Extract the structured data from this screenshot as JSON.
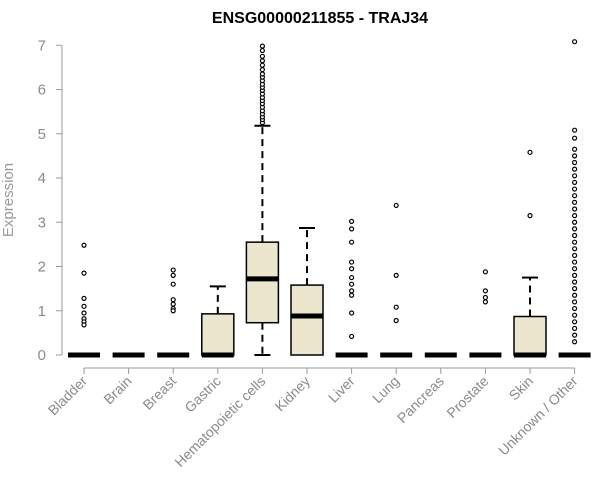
{
  "chart_data": {
    "type": "box",
    "title": "ENSG00000211855 - TRAJ34",
    "xlabel": "",
    "ylabel": "Expression",
    "ylim": [
      0,
      7
    ],
    "yticks": [
      "0",
      "1",
      "2",
      "3",
      "4",
      "5",
      "6",
      "7"
    ],
    "grid": false,
    "box_fill": "#ede6cf",
    "categories": [
      "Bladder",
      "Brain",
      "Breast",
      "Gastric",
      "Hematopoietic cells",
      "Kidney",
      "Liver",
      "Lung",
      "Pancreas",
      "Prostate",
      "Skin",
      "Unknown / Other"
    ],
    "boxes": [
      {
        "q1": 0,
        "median": 0,
        "q3": 0,
        "whisker_low": 0,
        "whisker_high": 0,
        "outliers": [
          2.48,
          1.85,
          1.28,
          1.1,
          0.95,
          0.82,
          0.75,
          0.68
        ]
      },
      {
        "q1": 0,
        "median": 0,
        "q3": 0,
        "whisker_low": 0,
        "whisker_high": 0,
        "outliers": []
      },
      {
        "q1": 0,
        "median": 0,
        "q3": 0,
        "whisker_low": 0,
        "whisker_high": 0,
        "outliers": [
          1.92,
          1.8,
          1.6,
          1.25,
          1.15,
          1.05,
          1.0
        ]
      },
      {
        "q1": 0,
        "median": 0,
        "q3": 0.93,
        "whisker_low": 0,
        "whisker_high": 1.55,
        "outliers": []
      },
      {
        "q1": 0.73,
        "median": 1.72,
        "q3": 2.55,
        "whisker_low": 0,
        "whisker_high": 5.18,
        "outliers": [
          5.25,
          5.32,
          5.38,
          5.45,
          5.52,
          5.6,
          5.68,
          5.75,
          5.82,
          5.9,
          5.98,
          6.05,
          6.12,
          6.2,
          6.28,
          6.35,
          6.45,
          6.55,
          6.65,
          6.75,
          6.88,
          6.98
        ]
      },
      {
        "q1": 0,
        "median": 0.88,
        "q3": 1.58,
        "whisker_low": 0,
        "whisker_high": 2.87,
        "outliers": []
      },
      {
        "q1": 0,
        "median": 0,
        "q3": 0,
        "whisker_low": 0,
        "whisker_high": 0,
        "outliers": [
          3.02,
          2.85,
          2.55,
          2.1,
          1.95,
          1.75,
          1.6,
          1.45,
          1.35,
          0.95,
          0.42
        ]
      },
      {
        "q1": 0,
        "median": 0,
        "q3": 0,
        "whisker_low": 0,
        "whisker_high": 0,
        "outliers": [
          3.38,
          1.8,
          1.08,
          0.78
        ]
      },
      {
        "q1": 0,
        "median": 0,
        "q3": 0,
        "whisker_low": 0,
        "whisker_high": 0,
        "outliers": []
      },
      {
        "q1": 0,
        "median": 0,
        "q3": 0,
        "whisker_low": 0,
        "whisker_high": 0,
        "outliers": [
          1.88,
          1.45,
          1.3,
          1.2
        ]
      },
      {
        "q1": 0,
        "median": 0,
        "q3": 0.87,
        "whisker_low": 0,
        "whisker_high": 1.75,
        "outliers": [
          4.58,
          3.15
        ]
      },
      {
        "q1": 0,
        "median": 0,
        "q3": 0,
        "whisker_low": 0,
        "whisker_high": 0,
        "outliers": [
          7.08,
          5.08,
          4.9,
          4.65,
          4.5,
          4.35,
          4.2,
          4.05,
          3.9,
          3.75,
          3.6,
          3.45,
          3.3,
          3.15,
          3.0,
          2.85,
          2.7,
          2.55,
          2.4,
          2.25,
          2.1,
          1.95,
          1.8,
          1.65,
          1.5,
          1.35,
          1.2,
          1.05,
          0.9,
          0.75,
          0.6,
          0.45,
          0.3
        ]
      }
    ]
  }
}
